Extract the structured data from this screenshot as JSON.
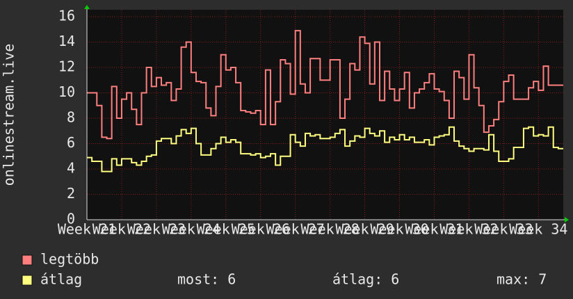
{
  "chart_data": {
    "type": "step",
    "ylabel": "onlinestream.live",
    "x": [
      0,
      1,
      2,
      3,
      4,
      5,
      6,
      7,
      8,
      9,
      10,
      11,
      12,
      13,
      14,
      15,
      16,
      17,
      18,
      19,
      20,
      21,
      22,
      23,
      24,
      25,
      26,
      27,
      28,
      29,
      30,
      31,
      32,
      33,
      34,
      35,
      36,
      37,
      38,
      39,
      40,
      41,
      42,
      43,
      44,
      45,
      46,
      47,
      48,
      49,
      50,
      51,
      52,
      53,
      54,
      55,
      56,
      57,
      58,
      59,
      60,
      61,
      62,
      63,
      64,
      65,
      66,
      67,
      68,
      69,
      70,
      71,
      72,
      73,
      74,
      75,
      76,
      77,
      78,
      79,
      80,
      81,
      82,
      83,
      84,
      85,
      86,
      87,
      88,
      89,
      90,
      91,
      92,
      93,
      94,
      95
    ],
    "series": [
      {
        "name": "legtöbb",
        "color": "#ff7f7f",
        "values": [
          10,
          10,
          9,
          6.5,
          6.4,
          10.5,
          8,
          9.5,
          10,
          8.7,
          7.5,
          10,
          12,
          10.5,
          11.2,
          10.6,
          10.8,
          9.4,
          10.3,
          13.6,
          14,
          11.6,
          10.9,
          10.8,
          8.8,
          8.2,
          10.5,
          13,
          11.8,
          12,
          10.8,
          8.6,
          8.5,
          8.4,
          8.6,
          7.5,
          11.8,
          7.5,
          9.3,
          12.6,
          12.3,
          9.9,
          14.9,
          10.7,
          10,
          12.7,
          12.7,
          11,
          11,
          12.6,
          12.6,
          8,
          9.5,
          12.3,
          11.8,
          14.4,
          13.9,
          10.7,
          14,
          9.4,
          11.7,
          10.3,
          9.4,
          10.3,
          11.6,
          8.8,
          10,
          10.3,
          10.8,
          11.5,
          10.3,
          10.1,
          9.4,
          8,
          11.7,
          11.2,
          9.5,
          13,
          10.4,
          9,
          6.9,
          7.4,
          7.9,
          9.3,
          10.9,
          11.4,
          9.5,
          9.5,
          9.5,
          10.4,
          10.9,
          10.2,
          12.1,
          10.6,
          10.6,
          10.6
        ]
      },
      {
        "name": "átlag",
        "color": "#ffff80",
        "values": [
          4.9,
          4.6,
          4.6,
          3.8,
          3.8,
          4.8,
          4.3,
          4.8,
          4.8,
          4.5,
          4.3,
          4.6,
          5,
          5.1,
          6.2,
          6.4,
          6.4,
          6,
          6.6,
          7.1,
          6.8,
          7.2,
          6,
          5.1,
          5.1,
          5.6,
          6,
          6.5,
          6.1,
          6.3,
          6.1,
          5.2,
          5.2,
          5.1,
          5.2,
          4.9,
          5,
          5.2,
          4.3,
          5,
          5,
          6.7,
          6.1,
          5.8,
          6.8,
          6.6,
          6.7,
          6.4,
          6.4,
          6.5,
          6.8,
          7.1,
          5.8,
          6.2,
          6.6,
          6.5,
          7.2,
          6.8,
          6.6,
          7,
          6.1,
          6.5,
          6.3,
          6.7,
          6.3,
          6.5,
          6.1,
          6.1,
          6.3,
          5.9,
          6.5,
          6.6,
          6.7,
          7.3,
          6.2,
          5.8,
          5.6,
          5.4,
          5.6,
          5.6,
          5.5,
          6.7,
          5.4,
          4.6,
          4.6,
          4.8,
          5.7,
          5.7,
          7.2,
          7.3,
          6.6,
          6.7,
          6.6,
          7.3,
          5.7,
          5.6
        ],
        "stats": [
          "most: 6",
          "átlag: 6",
          "max: 7"
        ]
      }
    ],
    "xlim": [
      0,
      96
    ],
    "xticks": [
      {
        "value": 0,
        "label": "Week 21"
      },
      {
        "value": 7,
        "label": "Week 22"
      },
      {
        "value": 14,
        "label": "Week 23"
      },
      {
        "value": 21,
        "label": "Week 24"
      },
      {
        "value": 28,
        "label": "Week 25"
      },
      {
        "value": 35,
        "label": "Week 26"
      },
      {
        "value": 42,
        "label": "Week 27"
      },
      {
        "value": 49,
        "label": "Week 28"
      },
      {
        "value": 56,
        "label": "Week 29"
      },
      {
        "value": 63,
        "label": "Week 30"
      },
      {
        "value": 70,
        "label": "Week 31"
      },
      {
        "value": 77,
        "label": "Week 32"
      },
      {
        "value": 84,
        "label": "Week 33"
      },
      {
        "value": 91,
        "label": "Week 34"
      }
    ],
    "ylim": [
      0,
      16
    ],
    "yticks": [
      0,
      2,
      4,
      6,
      8,
      10,
      12,
      14,
      16
    ],
    "grid": true
  }
}
